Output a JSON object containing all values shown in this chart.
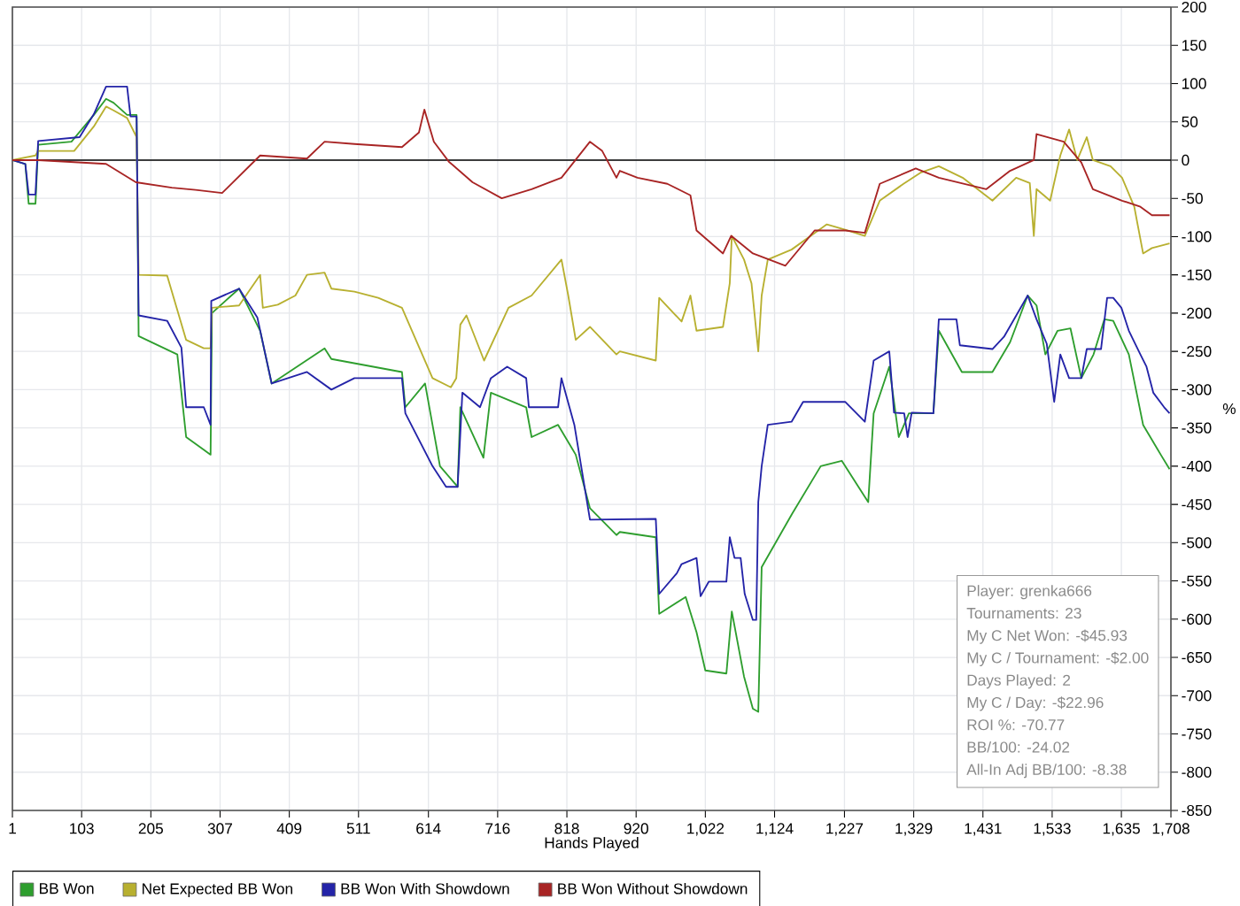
{
  "chart_data": {
    "type": "line",
    "xlabel": "Hands Played",
    "ylabel": "%",
    "xlim": [
      1,
      1708
    ],
    "ylim": [
      -850,
      200
    ],
    "xticks": [
      1,
      103,
      205,
      307,
      409,
      511,
      614,
      716,
      818,
      920,
      {
        "value": 1022,
        "label": "1,022"
      },
      {
        "value": 1124,
        "label": "1,124"
      },
      {
        "value": 1227,
        "label": "1,227"
      },
      {
        "value": 1329,
        "label": "1,329"
      },
      {
        "value": 1431,
        "label": "1,431"
      },
      {
        "value": 1533,
        "label": "1,533"
      },
      {
        "value": 1635,
        "label": "1,635"
      },
      {
        "value": 1708,
        "label": "1,708"
      }
    ],
    "yticks": [
      -850,
      -800,
      -750,
      -700,
      -650,
      -600,
      -550,
      -500,
      -450,
      -400,
      -350,
      -300,
      -250,
      -200,
      -150,
      -100,
      -50,
      0,
      50,
      100,
      150,
      200
    ],
    "grid": true,
    "legend": "bottom",
    "marker": "none",
    "line_style": "solid",
    "ref_lines": [
      {
        "axis": "y",
        "value": 0,
        "color": "#000000"
      }
    ],
    "annotations": [
      "Player: grenka666",
      "Tournaments: 23",
      "My C Net Won: -$45.93",
      "My C / Tournament: -$2.00",
      "Days Played: 2",
      "My C / Day: -$22.96",
      "ROI %: -70.77",
      "BB/100: -24.02",
      "All-In Adj BB/100: -8.38"
    ],
    "series": [
      {
        "name": "BB Won",
        "color": "#2e9e2e",
        "x": [
          1,
          20,
          25,
          35,
          39,
          88,
          121,
          139,
          150,
          170,
          184,
          187,
          244,
          257,
          293,
          295,
          335,
          366,
          383,
          461,
          471,
          575,
          580,
          609,
          631,
          657,
          661,
          695,
          706,
          758,
          766,
          805,
          831,
          852,
          891,
          896,
          949,
          954,
          993,
          1009,
          1022,
          1053,
          1061,
          1079,
          1092,
          1100,
          1105,
          1150,
          1192,
          1223,
          1262,
          1270,
          1293,
          1307,
          1322,
          1358,
          1366,
          1400,
          1445,
          1471,
          1497,
          1510,
          1523,
          1541,
          1560,
          1576,
          1594,
          1610,
          1623,
          1646,
          1667,
          1693,
          1706
        ],
        "values": [
          0,
          -5,
          -57,
          -57,
          20,
          24,
          59,
          80,
          75,
          59,
          59,
          -230,
          -254,
          -362,
          -385,
          -200,
          -168,
          -223,
          -292,
          -246,
          -260,
          -277,
          -323,
          -292,
          -400,
          -427,
          -323,
          -389,
          -304,
          -323,
          -362,
          -346,
          -385,
          -455,
          -490,
          -486,
          -493,
          -593,
          -571,
          -617,
          -667,
          -671,
          -590,
          -675,
          -717,
          -721,
          -532,
          -462,
          -400,
          -393,
          -447,
          -331,
          -270,
          -362,
          -331,
          -331,
          -223,
          -277,
          -277,
          -238,
          -177,
          -190,
          -254,
          -223,
          -220,
          -285,
          -254,
          -208,
          -210,
          -254,
          -346,
          -385,
          -404
        ]
      },
      {
        "name": "Net Expected BB Won",
        "color": "#b8b030",
        "x": [
          1,
          35,
          39,
          92,
          121,
          139,
          150,
          170,
          184,
          187,
          229,
          257,
          283,
          293,
          295,
          335,
          366,
          370,
          392,
          418,
          435,
          461,
          471,
          505,
          540,
          575,
          620,
          647,
          655,
          661,
          670,
          696,
          732,
          766,
          810,
          820,
          831,
          852,
          891,
          896,
          949,
          954,
          987,
          1000,
          1009,
          1048,
          1058,
          1061,
          1079,
          1090,
          1100,
          1105,
          1114,
          1149,
          1201,
          1228,
          1257,
          1279,
          1314,
          1340,
          1366,
          1401,
          1445,
          1480,
          1500,
          1506,
          1510,
          1530,
          1545,
          1558,
          1570,
          1584,
          1593,
          1619,
          1636,
          1654,
          1667,
          1680,
          1706
        ],
        "values": [
          0,
          6,
          12,
          12,
          44,
          70,
          65,
          55,
          30,
          -150,
          -151,
          -235,
          -246,
          -246,
          -193,
          -190,
          -150,
          -193,
          -189,
          -177,
          -150,
          -147,
          -168,
          -172,
          -180,
          -193,
          -285,
          -297,
          -285,
          -215,
          -203,
          -262,
          -193,
          -177,
          -130,
          -177,
          -235,
          -218,
          -254,
          -250,
          -262,
          -180,
          -211,
          -177,
          -223,
          -218,
          -161,
          -99,
          -130,
          -161,
          -250,
          -177,
          -130,
          -117,
          -84,
          -91,
          -99,
          -53,
          -31,
          -16,
          -8,
          -23,
          -53,
          -23,
          -30,
          -99,
          -38,
          -53,
          6,
          40,
          0,
          30,
          0,
          -8,
          -23,
          -61,
          -122,
          -115,
          -109
        ]
      },
      {
        "name": "BB Won With Showdown",
        "color": "#2424a8",
        "x": [
          1,
          20,
          25,
          35,
          39,
          100,
          121,
          139,
          170,
          175,
          184,
          187,
          229,
          250,
          257,
          283,
          293,
          294,
          335,
          362,
          383,
          435,
          471,
          505,
          575,
          580,
          620,
          640,
          657,
          664,
          690,
          706,
          730,
          758,
          762,
          805,
          810,
          829,
          852,
          949,
          954,
          980,
          987,
          1009,
          1015,
          1027,
          1053,
          1058,
          1065,
          1074,
          1080,
          1092,
          1097,
          1100,
          1105,
          1114,
          1149,
          1166,
          1228,
          1257,
          1270,
          1293,
          1300,
          1315,
          1320,
          1326,
          1358,
          1366,
          1392,
          1397,
          1445,
          1462,
          1497,
          1510,
          1525,
          1536,
          1545,
          1558,
          1576,
          1584,
          1605,
          1614,
          1623,
          1635,
          1646,
          1663,
          1672,
          1682,
          1698,
          1706
        ],
        "values": [
          0,
          -5,
          -45,
          -45,
          25,
          30,
          60,
          96,
          96,
          57,
          57,
          -203,
          -210,
          -245,
          -323,
          -323,
          -346,
          -184,
          -168,
          -206,
          -292,
          -277,
          -300,
          -285,
          -285,
          -331,
          -400,
          -427,
          -427,
          -304,
          -323,
          -285,
          -270,
          -285,
          -323,
          -323,
          -285,
          -346,
          -470,
          -469,
          -567,
          -540,
          -528,
          -520,
          -570,
          -551,
          -551,
          -493,
          -520,
          -520,
          -567,
          -601,
          -601,
          -447,
          -400,
          -346,
          -342,
          -316,
          -316,
          -342,
          -262,
          -250,
          -330,
          -331,
          -362,
          -330,
          -331,
          -208,
          -208,
          -242,
          -247,
          -231,
          -177,
          -208,
          -240,
          -316,
          -254,
          -285,
          -285,
          -247,
          -247,
          -180,
          -180,
          -193,
          -223,
          -254,
          -270,
          -304,
          -323,
          -331
        ]
      },
      {
        "name": "BB Won Without Showdown",
        "color": "#a82424",
        "x": [
          1,
          39,
          139,
          183,
          236,
          271,
          310,
          366,
          435,
          461,
          505,
          575,
          600,
          608,
          622,
          644,
          679,
          722,
          766,
          810,
          852,
          870,
          891,
          896,
          922,
          966,
          1000,
          1009,
          1048,
          1060,
          1092,
          1140,
          1183,
          1228,
          1257,
          1279,
          1332,
          1366,
          1436,
          1471,
          1506,
          1510,
          1550,
          1576,
          1593,
          1636,
          1663,
          1680,
          1706
        ],
        "values": [
          0,
          0,
          -5,
          -29,
          -36,
          -39,
          -43,
          6,
          2,
          24,
          21,
          17,
          36,
          66,
          24,
          -2,
          -29,
          -50,
          -38,
          -23,
          24,
          12,
          -23,
          -14,
          -23,
          -31,
          -46,
          -92,
          -122,
          -99,
          -122,
          -138,
          -92,
          -92,
          -95,
          -31,
          -11,
          -23,
          -38,
          -14,
          0,
          34,
          24,
          -3,
          -38,
          -53,
          -61,
          -72,
          -72
        ]
      }
    ]
  }
}
